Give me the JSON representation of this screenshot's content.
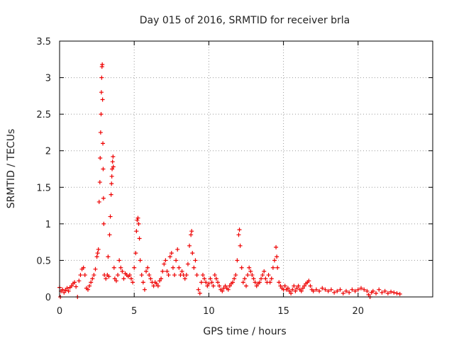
{
  "chart_data": {
    "type": "scatter",
    "title": "Day 015 of 2016, SRMTID for receiver brla",
    "xlabel": "GPS time / hours",
    "ylabel": "SRMTID / TECUs",
    "xlim": [
      0,
      25
    ],
    "ylim": [
      0,
      3.5
    ],
    "xticks": [
      0,
      5,
      10,
      15,
      20
    ],
    "xtick_labels": [
      "0",
      "5",
      "10",
      "15",
      "20"
    ],
    "yticks": [
      0,
      0.5,
      1,
      1.5,
      2,
      2.5,
      3,
      3.5
    ],
    "ytick_labels": [
      "0",
      "0.5",
      "1",
      "1.5",
      "2",
      "2.5",
      "3",
      "3.5"
    ],
    "grid": true,
    "marker": "+",
    "series": [
      {
        "name": "SRMTID",
        "color": "#ee0000",
        "points": [
          [
            0.0,
            0.13
          ],
          [
            0.05,
            0.0
          ],
          [
            0.1,
            0.08
          ],
          [
            0.2,
            0.1
          ],
          [
            0.3,
            0.06
          ],
          [
            0.4,
            0.09
          ],
          [
            0.5,
            0.12
          ],
          [
            0.6,
            0.08
          ],
          [
            0.7,
            0.13
          ],
          [
            0.8,
            0.15
          ],
          [
            0.9,
            0.18
          ],
          [
            1.0,
            0.2
          ],
          [
            1.1,
            0.14
          ],
          [
            1.2,
            0.0
          ],
          [
            1.3,
            0.22
          ],
          [
            1.4,
            0.3
          ],
          [
            1.5,
            0.38
          ],
          [
            1.6,
            0.4
          ],
          [
            1.7,
            0.3
          ],
          [
            1.8,
            0.12
          ],
          [
            1.9,
            0.1
          ],
          [
            2.0,
            0.15
          ],
          [
            2.1,
            0.2
          ],
          [
            2.2,
            0.25
          ],
          [
            2.3,
            0.3
          ],
          [
            2.4,
            0.38
          ],
          [
            2.5,
            0.55
          ],
          [
            2.55,
            0.6
          ],
          [
            2.6,
            0.65
          ],
          [
            2.65,
            1.3
          ],
          [
            2.7,
            1.57
          ],
          [
            2.72,
            1.9
          ],
          [
            2.75,
            2.25
          ],
          [
            2.78,
            2.5
          ],
          [
            2.8,
            2.8
          ],
          [
            2.82,
            3.0
          ],
          [
            2.84,
            3.15
          ],
          [
            2.86,
            3.18
          ],
          [
            2.88,
            2.7
          ],
          [
            2.9,
            2.1
          ],
          [
            2.92,
            1.75
          ],
          [
            2.94,
            1.35
          ],
          [
            2.96,
            1.0
          ],
          [
            3.0,
            0.3
          ],
          [
            3.1,
            0.25
          ],
          [
            3.2,
            0.3
          ],
          [
            3.25,
            0.55
          ],
          [
            3.3,
            0.28
          ],
          [
            3.35,
            0.85
          ],
          [
            3.4,
            1.1
          ],
          [
            3.45,
            1.4
          ],
          [
            3.48,
            1.55
          ],
          [
            3.5,
            1.65
          ],
          [
            3.52,
            1.75
          ],
          [
            3.55,
            1.85
          ],
          [
            3.58,
            1.92
          ],
          [
            3.6,
            1.78
          ],
          [
            3.65,
            0.4
          ],
          [
            3.7,
            0.25
          ],
          [
            3.8,
            0.22
          ],
          [
            3.9,
            0.3
          ],
          [
            4.0,
            0.5
          ],
          [
            4.1,
            0.4
          ],
          [
            4.2,
            0.35
          ],
          [
            4.3,
            0.25
          ],
          [
            4.4,
            0.32
          ],
          [
            4.5,
            0.3
          ],
          [
            4.6,
            0.28
          ],
          [
            4.7,
            0.3
          ],
          [
            4.8,
            0.25
          ],
          [
            4.9,
            0.2
          ],
          [
            5.0,
            0.4
          ],
          [
            5.1,
            0.6
          ],
          [
            5.15,
            0.9
          ],
          [
            5.2,
            1.05
          ],
          [
            5.25,
            1.08
          ],
          [
            5.3,
            1.0
          ],
          [
            5.35,
            0.8
          ],
          [
            5.4,
            0.5
          ],
          [
            5.5,
            0.3
          ],
          [
            5.6,
            0.2
          ],
          [
            5.7,
            0.1
          ],
          [
            5.8,
            0.35
          ],
          [
            5.9,
            0.4
          ],
          [
            6.0,
            0.3
          ],
          [
            6.1,
            0.25
          ],
          [
            6.2,
            0.2
          ],
          [
            6.3,
            0.15
          ],
          [
            6.4,
            0.2
          ],
          [
            6.5,
            0.18
          ],
          [
            6.6,
            0.15
          ],
          [
            6.7,
            0.22
          ],
          [
            6.8,
            0.25
          ],
          [
            6.9,
            0.35
          ],
          [
            7.0,
            0.45
          ],
          [
            7.1,
            0.5
          ],
          [
            7.2,
            0.35
          ],
          [
            7.3,
            0.3
          ],
          [
            7.4,
            0.55
          ],
          [
            7.5,
            0.6
          ],
          [
            7.6,
            0.4
          ],
          [
            7.7,
            0.3
          ],
          [
            7.8,
            0.5
          ],
          [
            7.9,
            0.65
          ],
          [
            8.0,
            0.4
          ],
          [
            8.1,
            0.3
          ],
          [
            8.2,
            0.35
          ],
          [
            8.3,
            0.3
          ],
          [
            8.4,
            0.25
          ],
          [
            8.5,
            0.3
          ],
          [
            8.6,
            0.45
          ],
          [
            8.7,
            0.7
          ],
          [
            8.8,
            0.85
          ],
          [
            8.85,
            0.9
          ],
          [
            8.9,
            0.6
          ],
          [
            9.0,
            0.4
          ],
          [
            9.1,
            0.5
          ],
          [
            9.2,
            0.3
          ],
          [
            9.3,
            0.1
          ],
          [
            9.4,
            0.05
          ],
          [
            9.5,
            0.2
          ],
          [
            9.6,
            0.3
          ],
          [
            9.7,
            0.25
          ],
          [
            9.8,
            0.2
          ],
          [
            9.9,
            0.15
          ],
          [
            10.0,
            0.18
          ],
          [
            10.1,
            0.25
          ],
          [
            10.2,
            0.2
          ],
          [
            10.3,
            0.15
          ],
          [
            10.4,
            0.3
          ],
          [
            10.5,
            0.25
          ],
          [
            10.6,
            0.2
          ],
          [
            10.7,
            0.15
          ],
          [
            10.8,
            0.1
          ],
          [
            10.9,
            0.08
          ],
          [
            11.0,
            0.12
          ],
          [
            11.1,
            0.15
          ],
          [
            11.2,
            0.12
          ],
          [
            11.3,
            0.1
          ],
          [
            11.4,
            0.15
          ],
          [
            11.5,
            0.18
          ],
          [
            11.6,
            0.2
          ],
          [
            11.7,
            0.25
          ],
          [
            11.8,
            0.3
          ],
          [
            11.9,
            0.5
          ],
          [
            12.0,
            0.85
          ],
          [
            12.05,
            0.92
          ],
          [
            12.1,
            0.7
          ],
          [
            12.2,
            0.4
          ],
          [
            12.3,
            0.2
          ],
          [
            12.4,
            0.25
          ],
          [
            12.5,
            0.15
          ],
          [
            12.6,
            0.3
          ],
          [
            12.7,
            0.4
          ],
          [
            12.8,
            0.35
          ],
          [
            12.9,
            0.3
          ],
          [
            13.0,
            0.25
          ],
          [
            13.1,
            0.2
          ],
          [
            13.2,
            0.15
          ],
          [
            13.3,
            0.18
          ],
          [
            13.4,
            0.2
          ],
          [
            13.5,
            0.25
          ],
          [
            13.6,
            0.3
          ],
          [
            13.7,
            0.35
          ],
          [
            13.8,
            0.25
          ],
          [
            13.9,
            0.2
          ],
          [
            14.0,
            0.3
          ],
          [
            14.1,
            0.2
          ],
          [
            14.2,
            0.25
          ],
          [
            14.3,
            0.4
          ],
          [
            14.4,
            0.5
          ],
          [
            14.5,
            0.68
          ],
          [
            14.55,
            0.55
          ],
          [
            14.6,
            0.4
          ],
          [
            14.7,
            0.2
          ],
          [
            14.8,
            0.15
          ],
          [
            14.9,
            0.12
          ],
          [
            15.0,
            0.1
          ],
          [
            15.1,
            0.15
          ],
          [
            15.2,
            0.1
          ],
          [
            15.3,
            0.12
          ],
          [
            15.4,
            0.08
          ],
          [
            15.5,
            0.05
          ],
          [
            15.6,
            0.1
          ],
          [
            15.7,
            0.15
          ],
          [
            15.8,
            0.08
          ],
          [
            15.9,
            0.12
          ],
          [
            16.0,
            0.15
          ],
          [
            16.1,
            0.1
          ],
          [
            16.2,
            0.08
          ],
          [
            16.3,
            0.12
          ],
          [
            16.4,
            0.15
          ],
          [
            16.5,
            0.18
          ],
          [
            16.6,
            0.2
          ],
          [
            16.7,
            0.22
          ],
          [
            16.8,
            0.15
          ],
          [
            16.9,
            0.1
          ],
          [
            17.0,
            0.08
          ],
          [
            17.2,
            0.1
          ],
          [
            17.4,
            0.08
          ],
          [
            17.6,
            0.12
          ],
          [
            17.8,
            0.1
          ],
          [
            18.0,
            0.08
          ],
          [
            18.2,
            0.1
          ],
          [
            18.4,
            0.06
          ],
          [
            18.6,
            0.08
          ],
          [
            18.8,
            0.1
          ],
          [
            19.0,
            0.05
          ],
          [
            19.2,
            0.08
          ],
          [
            19.4,
            0.06
          ],
          [
            19.6,
            0.1
          ],
          [
            19.8,
            0.08
          ],
          [
            20.0,
            0.1
          ],
          [
            20.2,
            0.12
          ],
          [
            20.4,
            0.1
          ],
          [
            20.6,
            0.08
          ],
          [
            20.7,
            0.03
          ],
          [
            20.8,
            0.0
          ],
          [
            20.9,
            0.06
          ],
          [
            21.0,
            0.08
          ],
          [
            21.2,
            0.05
          ],
          [
            21.4,
            0.1
          ],
          [
            21.6,
            0.06
          ],
          [
            21.8,
            0.08
          ],
          [
            22.0,
            0.05
          ],
          [
            22.2,
            0.07
          ],
          [
            22.4,
            0.06
          ],
          [
            22.6,
            0.05
          ],
          [
            22.8,
            0.04
          ]
        ]
      }
    ]
  }
}
